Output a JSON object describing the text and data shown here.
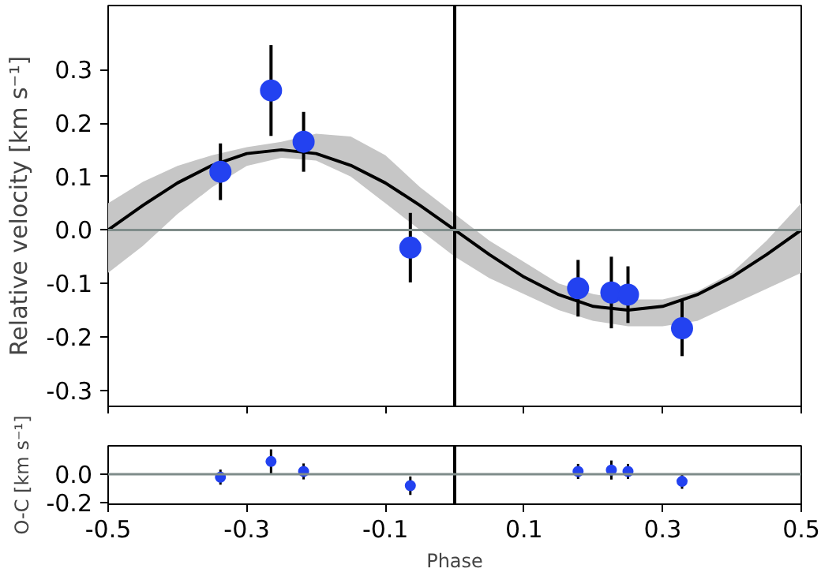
{
  "chart_data": [
    {
      "type": "scatter",
      "ylabel": "Relative velocity [km s⁻¹]",
      "xlim": [
        -0.5,
        0.5
      ],
      "ylim": [
        -0.33,
        0.42
      ],
      "xticks": [
        -0.5,
        -0.3,
        -0.1,
        0.1,
        0.3,
        0.5
      ],
      "yticks": [
        -0.3,
        -0.2,
        -0.1,
        {
          "value": 0,
          "label": "0.0"
        },
        0.1,
        0.2,
        0.3
      ],
      "tick_labels": "y",
      "ref_lines": [
        {
          "axis": "x",
          "value": 0,
          "color": "#000000"
        },
        {
          "axis": "y",
          "value": 0,
          "color": "#7f8c8a"
        }
      ],
      "series": [
        {
          "type": "line",
          "color": "#000000",
          "x": [
            -0.5,
            -0.45,
            -0.4,
            -0.35,
            -0.3,
            -0.25,
            -0.2,
            -0.15,
            -0.1,
            -0.05,
            0,
            0.05,
            0.1,
            0.15,
            0.2,
            0.25,
            0.3,
            0.35,
            0.4,
            0.45,
            0.5
          ],
          "values": [
            0,
            0.046,
            0.088,
            0.121,
            0.143,
            0.15,
            0.143,
            0.121,
            0.088,
            0.046,
            0,
            -0.046,
            -0.088,
            -0.121,
            -0.143,
            -0.15,
            -0.143,
            -0.121,
            -0.088,
            -0.046,
            0
          ],
          "lower": [
            -0.08,
            -0.03,
            0.03,
            0.08,
            0.12,
            0.135,
            0.13,
            0.1,
            0.05,
            0.0,
            -0.05,
            -0.09,
            -0.12,
            -0.15,
            -0.17,
            -0.18,
            -0.18,
            -0.17,
            -0.14,
            -0.11,
            -0.08
          ],
          "upper": [
            0.05,
            0.09,
            0.12,
            0.14,
            0.155,
            0.165,
            0.18,
            0.175,
            0.14,
            0.08,
            0.03,
            -0.02,
            -0.06,
            -0.1,
            -0.12,
            -0.13,
            -0.13,
            -0.115,
            -0.08,
            -0.02,
            0.05
          ]
        },
        {
          "type": "scatter",
          "marker": "circle",
          "color": "#2342f0",
          "x": [
            -0.338,
            -0.265,
            -0.218,
            -0.064,
            0.178,
            0.226,
            0.25,
            0.328
          ],
          "values": [
            0.109,
            0.261,
            0.165,
            -0.033,
            -0.109,
            -0.117,
            -0.121,
            -0.184
          ],
          "errors": [
            0.053,
            0.085,
            0.056,
            0.065,
            0.053,
            0.067,
            0.053,
            0.052
          ]
        }
      ]
    },
    {
      "type": "scatter",
      "xlabel": "Phase",
      "ylabel": "O-C [km s⁻¹]",
      "xlim": [
        -0.5,
        0.5
      ],
      "ylim": [
        -0.21,
        0.2
      ],
      "xticks": [
        -0.5,
        -0.3,
        -0.1,
        0.1,
        0.3,
        0.5
      ],
      "yticks": [
        -0.2,
        {
          "value": 0,
          "label": "0.0"
        }
      ],
      "ref_lines": [
        {
          "axis": "x",
          "value": 0,
          "color": "#000000"
        },
        {
          "axis": "y",
          "value": 0,
          "color": "#7f8c8a"
        }
      ],
      "series": [
        {
          "type": "scatter",
          "marker": "circle",
          "color": "#2342f0",
          "x": [
            -0.338,
            -0.265,
            -0.218,
            -0.064,
            0.178,
            0.226,
            0.25,
            0.328
          ],
          "values": [
            -0.02,
            0.09,
            0.02,
            -0.08,
            0.02,
            0.03,
            0.02,
            -0.05
          ],
          "errors": [
            0.053,
            0.085,
            0.056,
            0.065,
            0.053,
            0.067,
            0.053,
            0.052
          ]
        }
      ]
    }
  ]
}
